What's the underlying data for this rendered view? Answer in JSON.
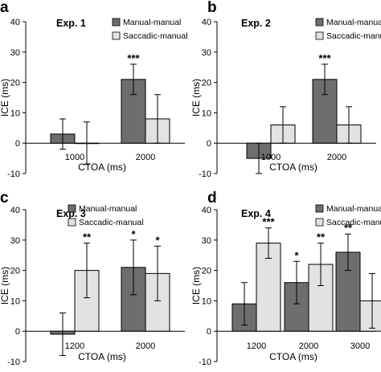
{
  "colors": {
    "manual_manual": "#6e6e6e",
    "saccadic_manual": "#e2e2e2",
    "stroke": "#000000"
  },
  "chart_data": [
    {
      "type": "bar",
      "panel_letter": "a",
      "title": "Exp. 1",
      "xlabel": "CTOA (ms)",
      "ylabel": "ICE (ms)",
      "categories": [
        "1000",
        "2000"
      ],
      "ylim": [
        -10,
        40
      ],
      "yticks": [
        -10,
        0,
        10,
        20,
        30,
        40
      ],
      "legend_position": "top-right",
      "series": [
        {
          "name": "Manual-manual",
          "values": [
            3,
            21
          ],
          "errors": [
            5,
            5
          ]
        },
        {
          "name": "Saccadic-manual",
          "values": [
            0,
            8
          ],
          "errors": [
            7,
            8
          ]
        }
      ],
      "annotations": [
        {
          "category": "2000",
          "series": 0,
          "text": "***"
        }
      ]
    },
    {
      "type": "bar",
      "panel_letter": "b",
      "title": "Exp. 2",
      "xlabel": "CTOA (ms)",
      "ylabel": "ICE (ms)",
      "categories": [
        "1000",
        "2000"
      ],
      "ylim": [
        -10,
        40
      ],
      "yticks": [
        -10,
        0,
        10,
        20,
        30,
        40
      ],
      "legend_position": "top-right",
      "series": [
        {
          "name": "Manual-manual",
          "values": [
            -5,
            21
          ],
          "errors": [
            5,
            5
          ]
        },
        {
          "name": "Saccadic-manual",
          "values": [
            6,
            6
          ],
          "errors": [
            6,
            6
          ]
        }
      ],
      "annotations": [
        {
          "category": "2000",
          "series": 0,
          "text": "***"
        }
      ]
    },
    {
      "type": "bar",
      "panel_letter": "c",
      "title": "Exp. 3",
      "xlabel": "CTOA (ms)",
      "ylabel": "ICE (ms)",
      "categories": [
        "1200",
        "2000"
      ],
      "ylim": [
        -10,
        40
      ],
      "yticks": [
        -10,
        0,
        10,
        20,
        30,
        40
      ],
      "legend_position": "top-right",
      "series": [
        {
          "name": "Manual-manual",
          "values": [
            -1,
            21
          ],
          "errors": [
            7,
            9
          ]
        },
        {
          "name": "Saccadic-manual",
          "values": [
            20,
            19
          ],
          "errors": [
            9,
            9
          ]
        }
      ],
      "annotations": [
        {
          "category": "1200",
          "series": 1,
          "text": "**"
        },
        {
          "category": "2000",
          "series": 0,
          "text": "*"
        },
        {
          "category": "2000",
          "series": 1,
          "text": "*"
        }
      ]
    },
    {
      "type": "bar",
      "panel_letter": "d",
      "title": "Exp. 4",
      "xlabel": "CTOA (ms)",
      "ylabel": "ICE (ms)",
      "categories": [
        "1200",
        "2000",
        "3000"
      ],
      "ylim": [
        -10,
        40
      ],
      "yticks": [
        -10,
        0,
        10,
        20,
        30,
        40
      ],
      "legend_position": "top-right",
      "series": [
        {
          "name": "Manual-manual",
          "values": [
            9,
            16,
            26
          ],
          "errors": [
            7,
            7,
            6
          ]
        },
        {
          "name": "Saccadic-manual",
          "values": [
            29,
            22,
            10
          ],
          "errors": [
            5,
            7,
            9
          ]
        }
      ],
      "annotations": [
        {
          "category": "1200",
          "series": 1,
          "text": "***"
        },
        {
          "category": "2000",
          "series": 0,
          "text": "*"
        },
        {
          "category": "2000",
          "series": 1,
          "text": "**"
        },
        {
          "category": "3000",
          "series": 0,
          "text": "**"
        }
      ]
    }
  ]
}
